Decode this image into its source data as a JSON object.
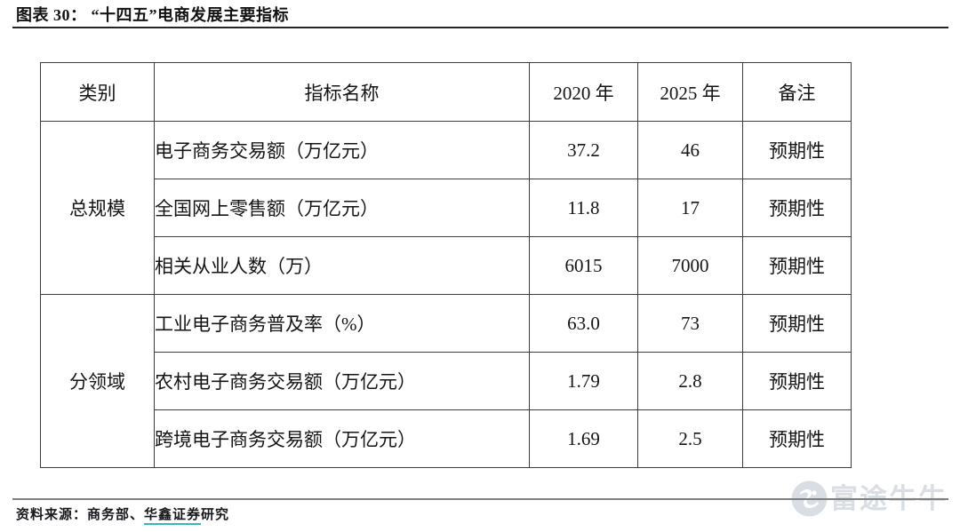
{
  "title": "图表 30： “十四五”电商发展主要指标",
  "table": {
    "headers": [
      "类别",
      "指标名称",
      "2020 年",
      "2025 年",
      "备注"
    ],
    "groups": [
      {
        "category": "总规模",
        "rows": [
          {
            "indicator": "电子商务交易额（万亿元）",
            "y2020": "37.2",
            "y2025": "46",
            "note": "预期性"
          },
          {
            "indicator": "全国网上零售额（万亿元）",
            "y2020": "11.8",
            "y2025": "17",
            "note": "预期性"
          },
          {
            "indicator": "相关从业人数（万）",
            "y2020": "6015",
            "y2025": "7000",
            "note": "预期性"
          }
        ]
      },
      {
        "category": "分领域",
        "rows": [
          {
            "indicator": "工业电子商务普及率（%）",
            "y2020": "63.0",
            "y2025": "73",
            "note": "预期性"
          },
          {
            "indicator": "农村电子商务交易额（万亿元）",
            "y2020": "1.79",
            "y2025": "2.8",
            "note": "预期性"
          },
          {
            "indicator": "跨境电子商务交易额（万亿元）",
            "y2020": "1.69",
            "y2025": "2.5",
            "note": "预期性"
          }
        ]
      }
    ]
  },
  "footer": {
    "source_label": "资料来源：",
    "source_plain1": "商务部、",
    "source_link": "华鑫证券",
    "source_plain2": "研究"
  },
  "watermark": {
    "text": "富途牛牛"
  },
  "colors": {
    "border": "#3d3d3d",
    "link_underline": "#35b8bc",
    "watermark": "#d9dee5",
    "title_rule": "#23252b",
    "footer_rule": "#7d7f82"
  }
}
